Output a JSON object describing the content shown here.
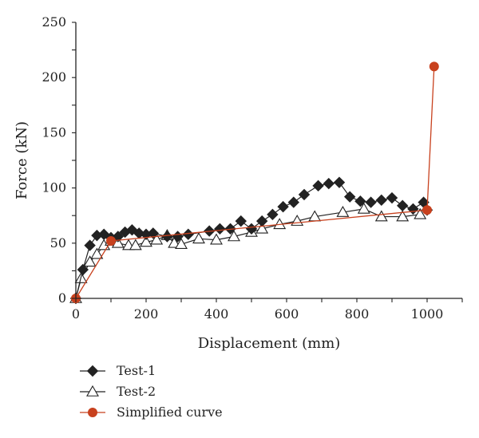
{
  "chart_data": {
    "type": "line",
    "xlabel": "Displacement (mm)",
    "ylabel": "Force (kN)",
    "xlim": [
      0,
      1100
    ],
    "ylim": [
      0,
      250
    ],
    "xticks": [
      0,
      200,
      400,
      600,
      800,
      1000
    ],
    "yticks": [
      0,
      50,
      100,
      150,
      200,
      250
    ],
    "grid": false,
    "legend_position": "bottom-left",
    "series": [
      {
        "name": "Test-1",
        "marker": "diamond-filled",
        "color": "#222222",
        "x": [
          0,
          20,
          40,
          60,
          80,
          100,
          120,
          140,
          160,
          180,
          200,
          220,
          260,
          290,
          320,
          380,
          410,
          440,
          470,
          500,
          530,
          560,
          590,
          620,
          650,
          690,
          720,
          750,
          780,
          810,
          840,
          870,
          900,
          930,
          960,
          990,
          1000
        ],
        "y": [
          0,
          26,
          48,
          57,
          58,
          55,
          56,
          60,
          62,
          59,
          58,
          59,
          56,
          56,
          58,
          61,
          63,
          63,
          70,
          63,
          70,
          76,
          83,
          87,
          94,
          102,
          104,
          105,
          92,
          88,
          87,
          89,
          91,
          84,
          81,
          87,
          80
        ]
      },
      {
        "name": "Test-2",
        "marker": "triangle-open",
        "color": "#222222",
        "x": [
          0,
          15,
          40,
          60,
          80,
          100,
          120,
          150,
          170,
          200,
          230,
          260,
          280,
          300,
          350,
          400,
          450,
          500,
          530,
          580,
          630,
          680,
          760,
          820,
          870,
          930,
          980
        ],
        "y": [
          0,
          18,
          33,
          40,
          48,
          52,
          50,
          48,
          48,
          51,
          53,
          57,
          50,
          49,
          54,
          53,
          56,
          60,
          63,
          67,
          70,
          74,
          78,
          81,
          74,
          74,
          76
        ]
      },
      {
        "name": "Simplified curve",
        "marker": "circle-filled",
        "color": "#C8411E",
        "x": [
          0,
          100,
          1000,
          1020
        ],
        "y": [
          0,
          52,
          80,
          210
        ]
      }
    ]
  }
}
